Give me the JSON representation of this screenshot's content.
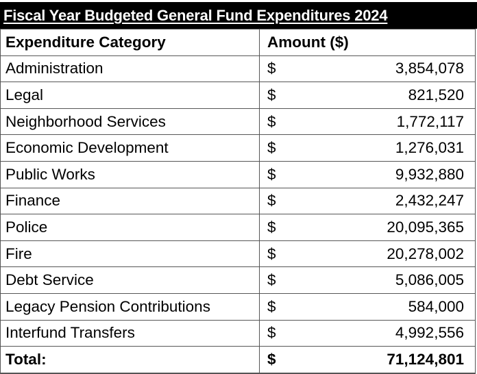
{
  "title": "Fiscal Year Budgeted General Fund Expenditures 2024",
  "columns": [
    "Expenditure Category",
    "Amount ($)"
  ],
  "currency_symbol": "$",
  "rows": [
    {
      "category": "Administration",
      "amount": "3,854,078"
    },
    {
      "category": "Legal",
      "amount": "821,520"
    },
    {
      "category": "Neighborhood Services",
      "amount": "1,772,117"
    },
    {
      "category": "Economic Development",
      "amount": "1,276,031"
    },
    {
      "category": "Public Works",
      "amount": "9,932,880"
    },
    {
      "category": "Finance",
      "amount": "2,432,247"
    },
    {
      "category": "Police",
      "amount": "20,095,365"
    },
    {
      "category": "Fire",
      "amount": "20,278,002"
    },
    {
      "category": "Debt Service",
      "amount": "5,086,005"
    },
    {
      "category": "Legacy Pension Contributions",
      "amount": "584,000"
    },
    {
      "category": "Interfund Transfers",
      "amount": "4,992,556"
    }
  ],
  "total": {
    "label": "Total:",
    "amount": "71,124,801"
  }
}
